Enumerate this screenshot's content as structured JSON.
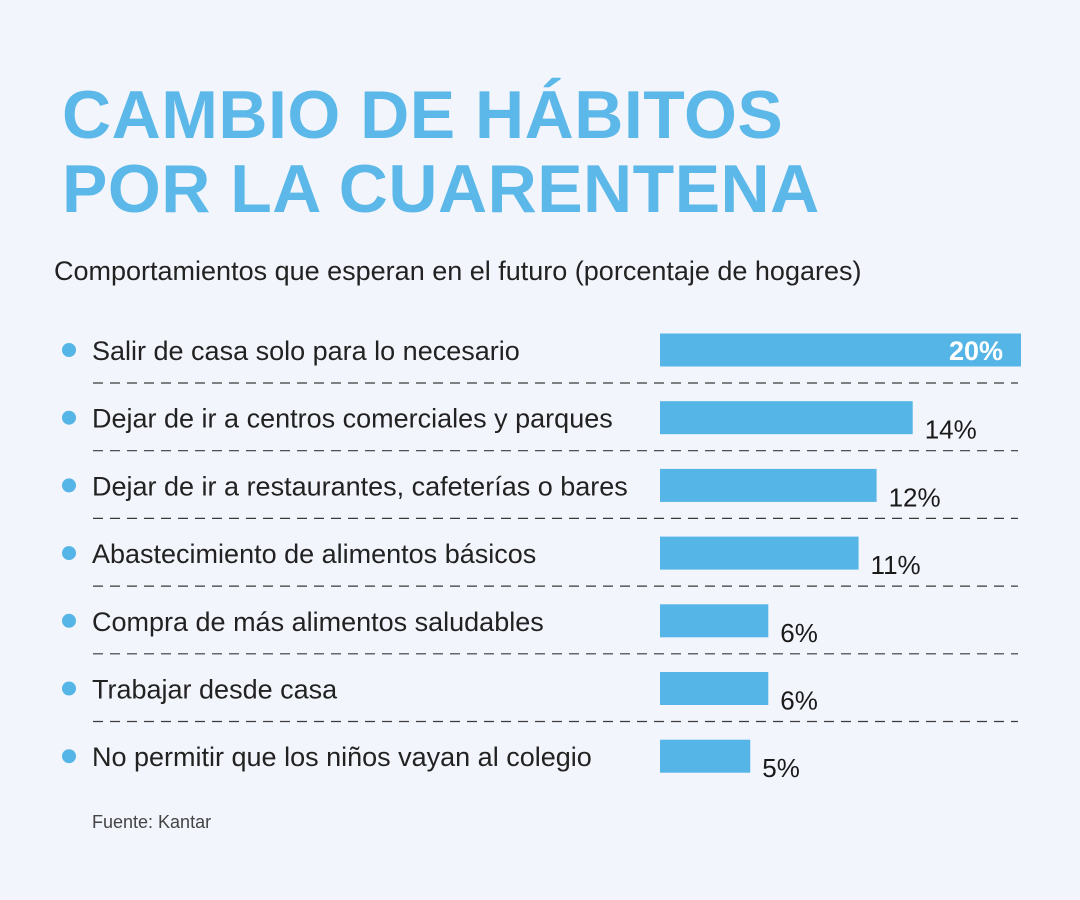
{
  "header": {
    "title_line1": "CAMBIO DE HÁBITOS",
    "title_line2": "POR LA CUARENTENA",
    "subtitle": "Comportamientos que esperan en el futuro (porcentaje de hogares)"
  },
  "footer": {
    "source": "Fuente: Kantar"
  },
  "colors": {
    "bar": "#55b5e6",
    "bullet": "#55b5e6",
    "label_text": "#222222",
    "value_text": "#1a1a1a",
    "value_text_inside": "#ffffff",
    "title": "#5bb8e8"
  },
  "chart_data": {
    "type": "bar",
    "orientation": "horizontal",
    "title": "CAMBIO DE HÁBITOS POR LA CUARENTENA",
    "subtitle": "Comportamientos que esperan en el futuro (porcentaje de hogares)",
    "xlabel": "",
    "ylabel": "",
    "unit": "%",
    "xlim": [
      0,
      20
    ],
    "grid": false,
    "legend": "none",
    "categories": [
      "Salir de casa solo para lo necesario",
      "Dejar de ir a centros comerciales y parques",
      "Dejar de ir a restaurantes, cafeterías o bares",
      "Abastecimiento de alimentos básicos",
      "Compra de más alimentos saludables",
      "Trabajar desde casa",
      "No permitir que los niños vayan al colegio"
    ],
    "values": [
      20,
      14,
      12,
      11,
      6,
      6,
      5
    ],
    "labels": [
      "20%",
      "14%",
      "12%",
      "11%",
      "6%",
      "6%",
      "5%"
    ]
  }
}
